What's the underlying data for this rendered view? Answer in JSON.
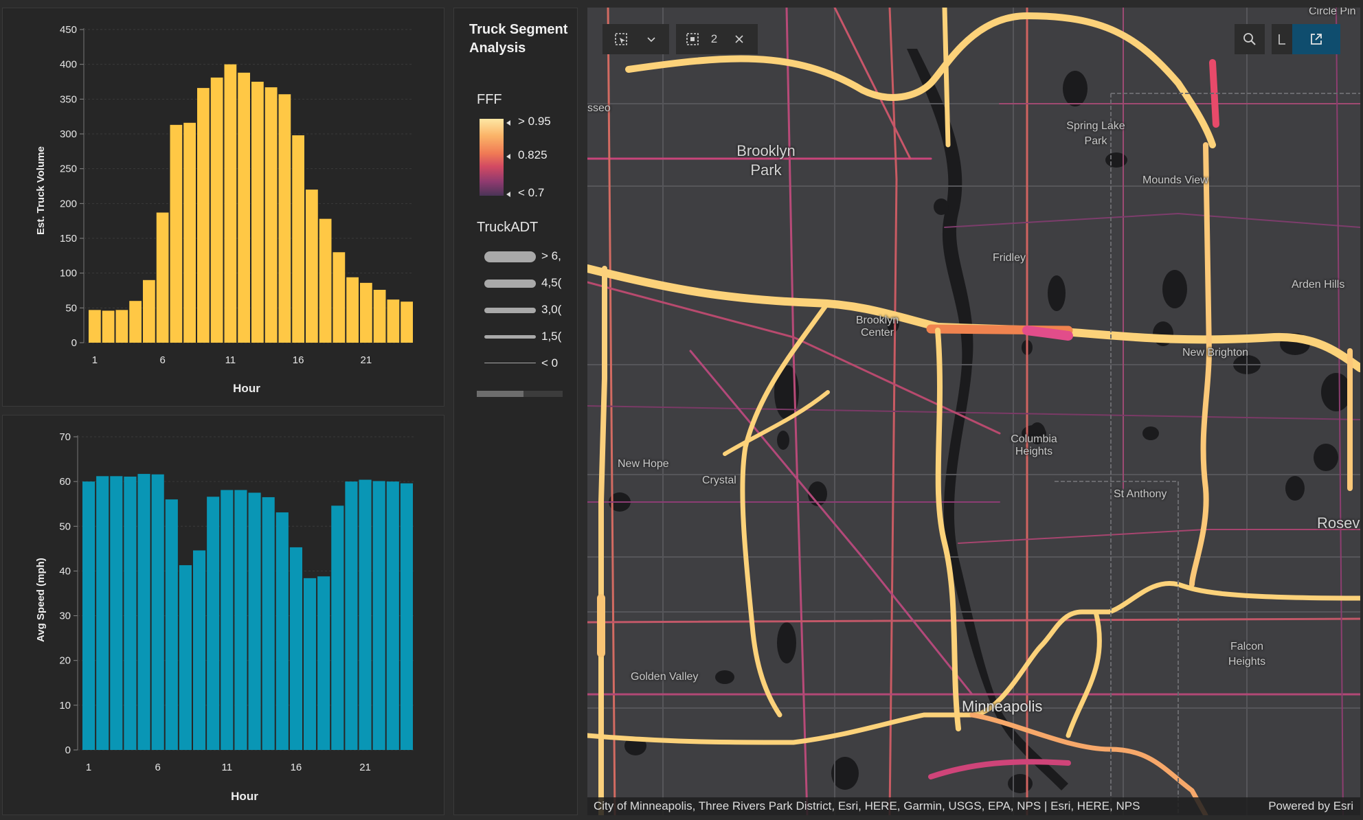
{
  "chart_data": [
    {
      "type": "bar",
      "ylabel": "Est. Truck Volume",
      "xlabel": "Hour",
      "color": "#ffc845",
      "ylim": [
        0,
        450
      ],
      "yticks": [
        0,
        50,
        100,
        150,
        200,
        250,
        300,
        350,
        400,
        450
      ],
      "xticks": [
        1,
        6,
        11,
        16,
        21
      ],
      "categories": [
        1,
        2,
        3,
        4,
        5,
        6,
        7,
        8,
        9,
        10,
        11,
        12,
        13,
        14,
        15,
        16,
        17,
        18,
        19,
        20,
        21,
        22,
        23,
        24
      ],
      "values": [
        47,
        46,
        47,
        60,
        90,
        187,
        313,
        316,
        366,
        381,
        400,
        388,
        375,
        367,
        357,
        298,
        220,
        178,
        130,
        94,
        86,
        76,
        62,
        59
      ]
    },
    {
      "type": "bar",
      "ylabel": "Avg Speed (mph)",
      "xlabel": "Hour",
      "color": "#0996b5",
      "ylim": [
        0,
        70
      ],
      "yticks": [
        0,
        10,
        20,
        30,
        40,
        50,
        60,
        70
      ],
      "xticks": [
        1,
        6,
        11,
        16,
        21
      ],
      "categories": [
        1,
        2,
        3,
        4,
        5,
        6,
        7,
        8,
        9,
        10,
        11,
        12,
        13,
        14,
        15,
        16,
        17,
        18,
        19,
        20,
        21,
        22,
        23,
        24
      ],
      "values": [
        60.0,
        61.2,
        61.2,
        61.1,
        61.7,
        61.6,
        56.0,
        41.3,
        44.6,
        56.6,
        58.1,
        58.1,
        57.5,
        56.5,
        53.1,
        45.3,
        38.4,
        38.8,
        54.6,
        60.0,
        60.4,
        60.1,
        60.0,
        59.6
      ]
    }
  ],
  "legend": {
    "title": "Truck Segment Analysis",
    "fff_label": "FFF",
    "fff_stops": [
      "> 0.95",
      "0.825",
      "< 0.7"
    ],
    "adt_label": "TruckADT",
    "adt_stops": [
      "> 6,",
      "4,5(",
      "3,0(",
      "1,5(",
      "< 0"
    ]
  },
  "map": {
    "toolbar": {
      "selection_count": "2"
    },
    "labels": {
      "circle_pines": "Circle Pin",
      "osseo": "sseo",
      "brooklyn_park": "Brooklyn Park",
      "spring_lake_park": "Spring Lake Park",
      "mounds_view": "Mounds View",
      "fridley": "Fridley",
      "arden_hills": "Arden Hills",
      "brooklyn_center": "Brooklyn Center",
      "new_brighton": "New Brighton",
      "new_hope": "New Hope",
      "crystal": "Crystal",
      "columbia_heights": "Columbia Heights",
      "st_anthony": "St Anthony",
      "roseville": "Rosev",
      "golden_valley": "Golden Valley",
      "falcon_heights": "Falcon Heights",
      "minneapolis": "Minneapolis"
    },
    "attribution": "City of Minneapolis, Three Rivers Park District, Esri, HERE, Garmin, USGS, EPA, NPS | Esri, HERE, NPS",
    "powered_by": "Powered by Esri"
  }
}
